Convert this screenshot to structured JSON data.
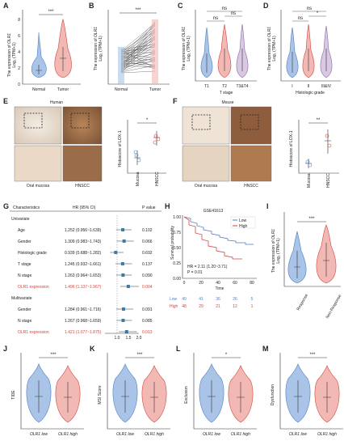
{
  "panels": {
    "A": {
      "label": "A",
      "ylabel": "The expression of OLR1\nLog₂ (TPM+1)",
      "ticks_y": [
        "0",
        "2",
        "4",
        "6",
        "8"
      ],
      "groups": [
        "Normal",
        "Tumor"
      ],
      "sig": "***"
    },
    "B": {
      "label": "B",
      "ylabel": "The expression of OLR1\nLog₂ (TPM+1)",
      "ticks_y": [
        "0",
        "2",
        "4",
        "6",
        "8"
      ],
      "groups": [
        "Normal",
        "Tumor"
      ],
      "sig": "***"
    },
    "C": {
      "label": "C",
      "ylabel": "The expression of OLR1\nLog₂ (TPM+1)",
      "ticks_y": [
        "0",
        "2",
        "4",
        "6",
        "8"
      ],
      "groups": [
        "T1",
        "T2",
        "T3&T4"
      ],
      "xlabel": "T stage",
      "sigs": [
        "ns",
        "ns",
        "ns"
      ]
    },
    "D": {
      "label": "D",
      "ylabel": "The expression of OLR1\nLog₂ (TPM+1)",
      "ticks_y": [
        "0",
        "2",
        "4",
        "6",
        "8"
      ],
      "groups": [
        "I",
        "II",
        "III&IV"
      ],
      "xlabel": "Histologic grade",
      "sigs": [
        "ns",
        "*",
        "ns"
      ]
    },
    "E": {
      "label": "E",
      "title": "Human",
      "captions": [
        "Oral mucosa",
        "HNSCC"
      ],
      "ylabel": "Histoscore of LOX-1",
      "groups": [
        "Mucosa",
        "HNSCC"
      ],
      "sig": "*",
      "ticks_y": [
        "0",
        "100",
        "200",
        "300"
      ]
    },
    "F": {
      "label": "F",
      "title": "Mouse",
      "captions": [
        "Oral mucosa",
        "HNSCC"
      ],
      "ylabel": "Histoscore of LOX-1",
      "groups": [
        "Mucosa",
        "HNSCC"
      ],
      "sig": "**",
      "ticks_y": [
        "0",
        "100",
        "200",
        "300"
      ]
    },
    "G": {
      "label": "G",
      "headers": [
        "Characteristics",
        "HR (95% CI)",
        "P value"
      ],
      "section1": "Univariate",
      "section2": "Multivariate",
      "rows_uni": [
        {
          "name": "Age",
          "hr": "1.252 (0.956~1.639)",
          "p": "0.102"
        },
        {
          "name": "Gender",
          "hr": "1.309 (0.983~1.743)",
          "p": "0.066"
        },
        {
          "name": "Histologic grade",
          "hr": "0.939 (0.688~1.282)",
          "p": "0.692"
        },
        {
          "name": "T stage",
          "hr": "1.245 (0.932~1.661)",
          "p": "0.137"
        },
        {
          "name": "N stage",
          "hr": "1.263 (0.964~1.653)",
          "p": "0.090"
        },
        {
          "name": "OLR1 expression",
          "hr": "1.496 (1.137~1.967)",
          "p": "0.004"
        }
      ],
      "rows_multi": [
        {
          "name": "Gender",
          "hr": "1.284 (0.961~1.716)",
          "p": "0.091"
        },
        {
          "name": "N stage",
          "hr": "1.267 (0.968~1.659)",
          "p": "0.085"
        },
        {
          "name": "OLR1 expression",
          "hr": "1.421 (1.077~1.875)",
          "p": "0.013"
        }
      ],
      "axis_ticks": [
        "1.0",
        "1.5",
        "2.0"
      ]
    },
    "H": {
      "label": "H",
      "title": "GSE41613",
      "ylabel": "Survival probability",
      "xlabel": "Time",
      "legend": [
        "Low",
        "High"
      ],
      "hr_text": "HR = 2.11 (1.20~3.71)",
      "p_text": "P = 0.01",
      "ticks_x": [
        "0",
        "20",
        "40",
        "60",
        "80"
      ],
      "ticks_y": [
        "0.00",
        "0.25",
        "0.50",
        "0.75",
        "1.00"
      ],
      "risk_low": [
        "49",
        "41",
        "36",
        "26",
        "5"
      ],
      "risk_high": [
        "48",
        "29",
        "21",
        "12",
        "1"
      ]
    },
    "I": {
      "label": "I",
      "ylabel": "The expression of OLR1\nLog₂ (TPM+1)",
      "groups": [
        "Response",
        "Non-Response"
      ],
      "sig": "***"
    },
    "J": {
      "label": "J",
      "ylabel": "TIDE",
      "groups": [
        "OLR1 low",
        "OLR1 high"
      ],
      "sig": "***"
    },
    "K": {
      "label": "K",
      "ylabel": "MSI Score",
      "groups": [
        "OLR1 low",
        "OLR1 high"
      ],
      "sig": "***"
    },
    "L": {
      "label": "L",
      "ylabel": "Exclusion",
      "groups": [
        "OLR1 low",
        "OLR1 high"
      ],
      "sig": "*"
    },
    "M": {
      "label": "M",
      "ylabel": "Dysfunction",
      "groups": [
        "OLR1 low",
        "OLR1 high"
      ],
      "sig": "***"
    }
  },
  "colors": {
    "blue": "#a9c4e6",
    "red": "#f2b8b3",
    "blue_line": "#4f7fc7",
    "red_line": "#d6453d",
    "tissue": "#e8ded3"
  }
}
